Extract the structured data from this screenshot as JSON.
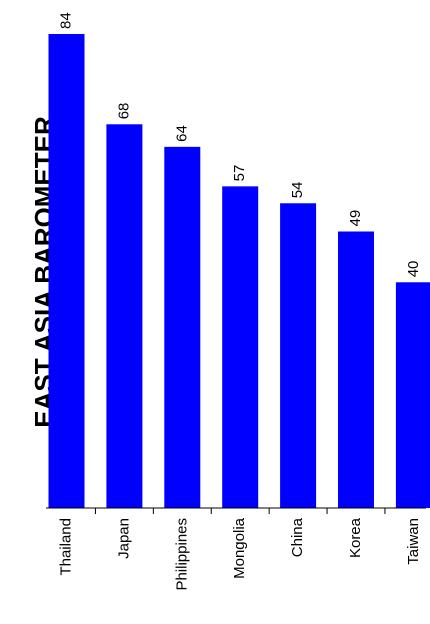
{
  "chart_data": {
    "type": "bar",
    "title": "EAST ASIA BAROMETER",
    "categories": [
      "Thailand",
      "Japan",
      "Philippines",
      "Mongolia",
      "China",
      "Korea",
      "Taiwan"
    ],
    "values": [
      84,
      68,
      64,
      57,
      54,
      49,
      40
    ],
    "ylim": [
      0,
      84
    ],
    "bar_color": "#0000ff",
    "grid": false,
    "legend": "none",
    "orientation": "vertical bars, all text rotated 90° counter-clockwise"
  }
}
